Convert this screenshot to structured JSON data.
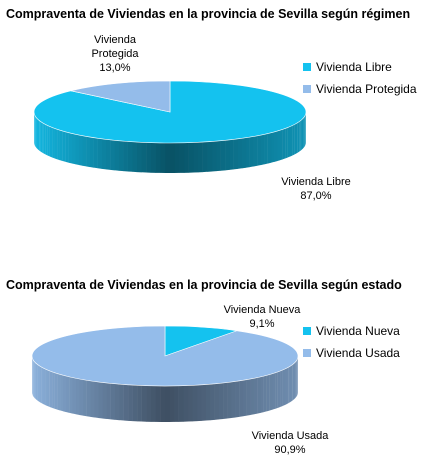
{
  "chart_data": [
    {
      "type": "pie",
      "title": "Compraventa de Viviendas en la provincia de Sevilla según régimen",
      "categories": [
        "Vivienda Libre",
        "Vivienda Protegida"
      ],
      "values": [
        87.0,
        13.0
      ],
      "value_labels": [
        "87,0%",
        "13,0%"
      ],
      "colors": [
        "#14c2ef",
        "#94bcea"
      ],
      "legend_position": "right",
      "style": "3d"
    },
    {
      "type": "pie",
      "title": "Compraventa de Viviendas en la provincia de Sevilla según estado",
      "categories": [
        "Vivienda Nueva",
        "Vivienda Usada"
      ],
      "values": [
        9.1,
        90.9
      ],
      "value_labels": [
        "9,1%",
        "90,9%"
      ],
      "colors": [
        "#14c2ef",
        "#94bcea"
      ],
      "legend_position": "right",
      "style": "3d"
    }
  ],
  "labels": {
    "chart1": {
      "protegida_line1": "Vivienda",
      "protegida_line2": "Protegida",
      "libre": "Vivienda Libre"
    },
    "chart2": {
      "nueva": "Vivienda Nueva",
      "usada": "Vivienda Usada"
    }
  }
}
